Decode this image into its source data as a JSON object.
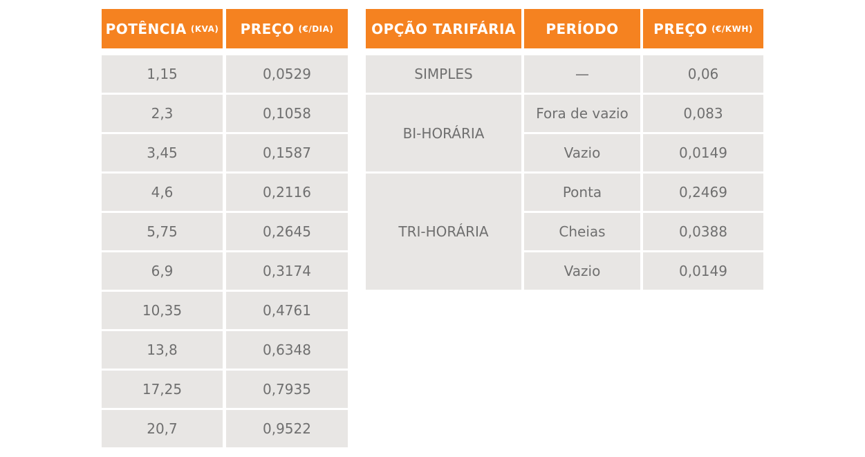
{
  "power_table": {
    "headers": {
      "power": {
        "main": "POTÊNCIA",
        "unit": "(KVA)"
      },
      "price": {
        "main": "PREÇO",
        "unit": "(€/DIA)"
      }
    },
    "rows": [
      {
        "power": "1,15",
        "price": "0,0529"
      },
      {
        "power": "2,3",
        "price": "0,1058"
      },
      {
        "power": "3,45",
        "price": "0,1587"
      },
      {
        "power": "4,6",
        "price": "0,2116"
      },
      {
        "power": "5,75",
        "price": "0,2645"
      },
      {
        "power": "6,9",
        "price": "0,3174"
      },
      {
        "power": "10,35",
        "price": "0,4761"
      },
      {
        "power": "13,8",
        "price": "0,6348"
      },
      {
        "power": "17,25",
        "price": "0,7935"
      },
      {
        "power": "20,7",
        "price": "0,9522"
      }
    ]
  },
  "tariff_table": {
    "headers": {
      "option": {
        "main": "OPÇÃO TARIFÁRIA"
      },
      "period": {
        "main": "PERÍODO"
      },
      "price": {
        "main": "PREÇO",
        "unit": "(€/KWH)"
      }
    },
    "groups": [
      {
        "option": "SIMPLES",
        "rows": [
          {
            "period": "—",
            "price": "0,06"
          }
        ]
      },
      {
        "option": "BI-HORÁRIA",
        "rows": [
          {
            "period": "Fora de vazio",
            "price": "0,083"
          },
          {
            "period": "Vazio",
            "price": "0,0149"
          }
        ]
      },
      {
        "option": "TRI-HORÁRIA",
        "rows": [
          {
            "period": "Ponta",
            "price": "0,2469"
          },
          {
            "period": "Cheias",
            "price": "0,0388"
          },
          {
            "period": "Vazio",
            "price": "0,0149"
          }
        ]
      }
    ]
  }
}
